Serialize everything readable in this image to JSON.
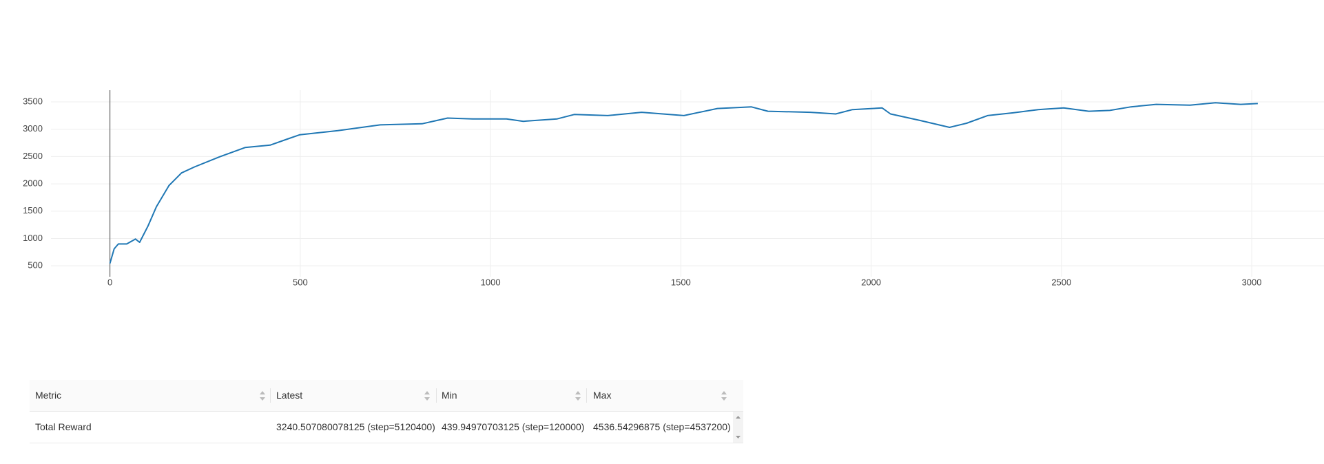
{
  "chart_data": {
    "type": "line",
    "x": [
      0,
      11,
      22,
      44,
      67,
      78,
      100,
      122,
      155,
      188,
      222,
      288,
      355,
      421,
      466,
      499,
      599,
      710,
      820,
      887,
      953,
      1042,
      1086,
      1175,
      1220,
      1308,
      1397,
      1508,
      1596,
      1685,
      1729,
      1840,
      1907,
      1951,
      2029,
      2051,
      2129,
      2206,
      2251,
      2306,
      2373,
      2439,
      2506,
      2572,
      2627,
      2683,
      2749,
      2838,
      2905,
      2971,
      3016
    ],
    "values": [
      545,
      810,
      900,
      900,
      990,
      930,
      1230,
      1580,
      1970,
      2200,
      2310,
      2495,
      2665,
      2710,
      2820,
      2900,
      2975,
      3080,
      3100,
      3205,
      3190,
      3190,
      3145,
      3190,
      3270,
      3250,
      3310,
      3250,
      3380,
      3410,
      3330,
      3310,
      3280,
      3360,
      3390,
      3280,
      3160,
      3035,
      3110,
      3250,
      3300,
      3360,
      3390,
      3330,
      3345,
      3410,
      3455,
      3440,
      3485,
      3455,
      3470
    ],
    "color": "#1f77b4",
    "xlim": [
      -155,
      3190
    ],
    "ylim": [
      300,
      3715
    ],
    "xticks": [
      0,
      500,
      1000,
      1500,
      2000,
      2500,
      3000
    ],
    "yticks": [
      500,
      1000,
      1500,
      2000,
      2500,
      3000,
      3500
    ],
    "grid": true
  },
  "table": {
    "columns": [
      "Metric",
      "Latest",
      "Min",
      "Max"
    ],
    "rows": [
      [
        "Total Reward",
        "3240.507080078125 (step=5120400)",
        "439.94970703125 (step=120000)",
        "4536.54296875 (step=4537200)"
      ]
    ]
  }
}
